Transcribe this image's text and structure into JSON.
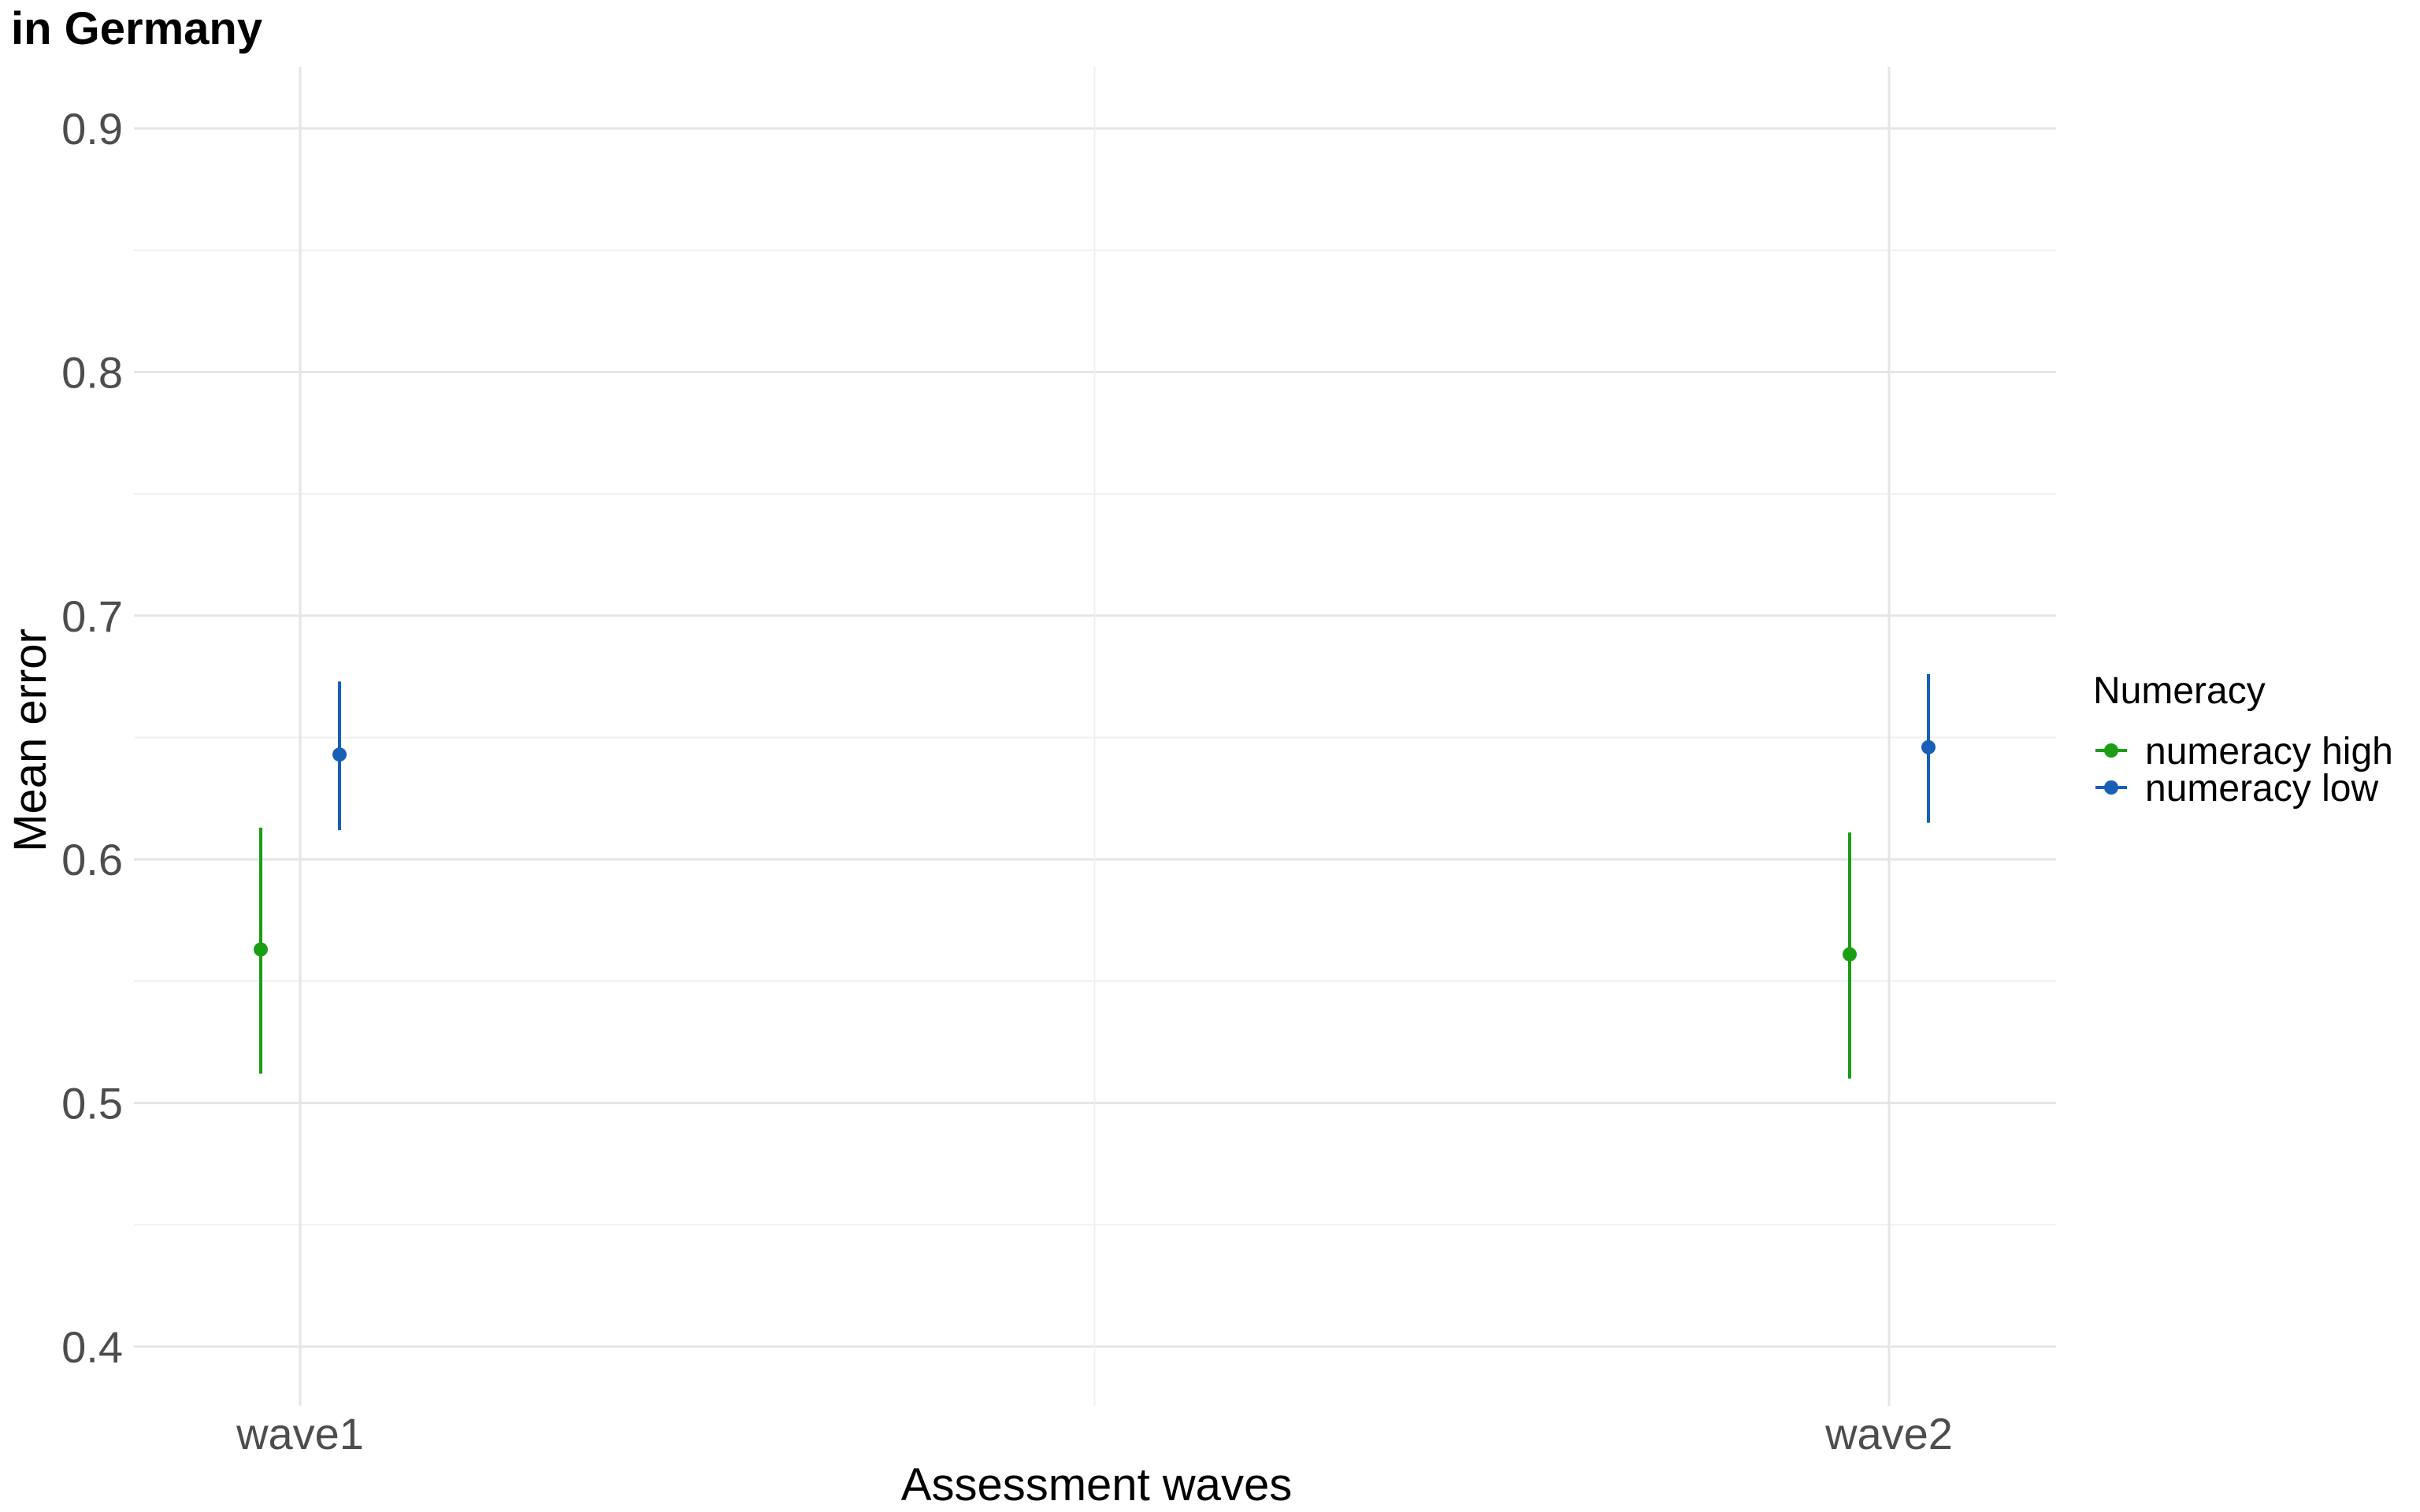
{
  "chart_data": {
    "type": "scatter",
    "title": "in Germany",
    "xlabel": "Assessment waves",
    "ylabel": "Mean error",
    "categories": [
      "wave1",
      "wave2"
    ],
    "ylim": [
      0.375,
      0.925
    ],
    "yticks": [
      0.4,
      0.5,
      0.6,
      0.7,
      0.8,
      0.9
    ],
    "ytick_labels": [
      "0.4",
      "0.5",
      "0.6",
      "0.7",
      "0.8",
      "0.9"
    ],
    "grid": true,
    "legend": {
      "title": "Numeracy",
      "placement": "right"
    },
    "series": [
      {
        "name": "numeracy high",
        "color": "#1a9e14",
        "values": [
          0.563,
          0.561
        ],
        "lower": [
          0.512,
          0.51
        ],
        "upper": [
          0.613,
          0.611
        ]
      },
      {
        "name": "numeracy low",
        "color": "#1760b5",
        "values": [
          0.643,
          0.646
        ],
        "lower": [
          0.612,
          0.615
        ],
        "upper": [
          0.673,
          0.676
        ]
      }
    ]
  }
}
